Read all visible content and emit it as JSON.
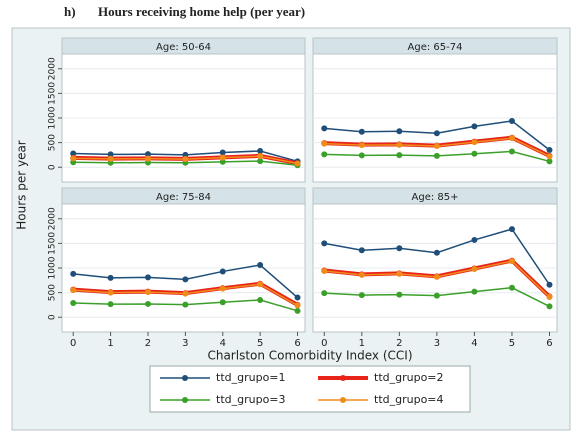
{
  "figure": {
    "label": "h)",
    "title": "Hours receiving home help (per year)"
  },
  "axes": {
    "y_label": "Hours per year",
    "x_label": "Charlston Comorbidity Index (CCI)"
  },
  "chart_data": [
    {
      "type": "line",
      "title": "Age: 50-64",
      "x": [
        0,
        1,
        2,
        3,
        4,
        5,
        6
      ],
      "xlim": [
        -0.3,
        6.2
      ],
      "ylim": [
        -300,
        2300
      ],
      "yticks": [
        0,
        500,
        1000,
        1500,
        2000
      ],
      "grid": true,
      "series": [
        {
          "name": "ttd_grupo=1",
          "color": "#1f4e79",
          "line_width": 1.5,
          "values": [
            280,
            260,
            265,
            250,
            300,
            330,
            120
          ]
        },
        {
          "name": "ttd_grupo=2",
          "color": "#e8231a",
          "line_width": 4,
          "values": [
            190,
            175,
            180,
            170,
            200,
            230,
            80
          ]
        },
        {
          "name": "ttd_grupo=3",
          "color": "#3aa02a",
          "line_width": 1.5,
          "values": [
            100,
            90,
            95,
            90,
            110,
            125,
            40
          ]
        },
        {
          "name": "ttd_grupo=4",
          "color": "#f08c1a",
          "line_width": 1.5,
          "values": [
            180,
            170,
            175,
            165,
            195,
            225,
            75
          ]
        }
      ]
    },
    {
      "type": "line",
      "title": "Age: 65-74",
      "x": [
        0,
        1,
        2,
        3,
        4,
        5,
        6
      ],
      "xlim": [
        -0.3,
        6.2
      ],
      "ylim": [
        -300,
        2300
      ],
      "yticks": [
        0,
        500,
        1000,
        1500,
        2000
      ],
      "grid": true,
      "series": [
        {
          "name": "ttd_grupo=1",
          "color": "#1f4e79",
          "line_width": 1.5,
          "values": [
            790,
            720,
            730,
            690,
            830,
            940,
            350
          ]
        },
        {
          "name": "ttd_grupo=2",
          "color": "#e8231a",
          "line_width": 4,
          "values": [
            490,
            460,
            465,
            440,
            520,
            600,
            230
          ]
        },
        {
          "name": "ttd_grupo=3",
          "color": "#3aa02a",
          "line_width": 1.5,
          "values": [
            260,
            240,
            245,
            230,
            275,
            320,
            120
          ]
        },
        {
          "name": "ttd_grupo=4",
          "color": "#f08c1a",
          "line_width": 1.5,
          "values": [
            480,
            450,
            455,
            430,
            510,
            590,
            220
          ]
        }
      ]
    },
    {
      "type": "line",
      "title": "Age: 75-84",
      "x": [
        0,
        1,
        2,
        3,
        4,
        5,
        6
      ],
      "xlim": [
        -0.3,
        6.2
      ],
      "xticks": [
        0,
        1,
        2,
        3,
        4,
        5,
        6
      ],
      "ylim": [
        -300,
        2300
      ],
      "yticks": [
        0,
        500,
        1000,
        1500,
        2000
      ],
      "grid": true,
      "series": [
        {
          "name": "ttd_grupo=1",
          "color": "#1f4e79",
          "line_width": 1.5,
          "values": [
            880,
            800,
            810,
            770,
            930,
            1060,
            400
          ]
        },
        {
          "name": "ttd_grupo=2",
          "color": "#e8231a",
          "line_width": 4,
          "values": [
            560,
            510,
            520,
            490,
            590,
            680,
            250
          ]
        },
        {
          "name": "ttd_grupo=3",
          "color": "#3aa02a",
          "line_width": 1.5,
          "values": [
            290,
            265,
            270,
            255,
            305,
            350,
            130
          ]
        },
        {
          "name": "ttd_grupo=4",
          "color": "#f08c1a",
          "line_width": 1.5,
          "values": [
            550,
            500,
            510,
            480,
            580,
            670,
            240
          ]
        }
      ]
    },
    {
      "type": "line",
      "title": "Age: 85+",
      "x": [
        0,
        1,
        2,
        3,
        4,
        5,
        6
      ],
      "xlim": [
        -0.3,
        6.2
      ],
      "xticks": [
        0,
        1,
        2,
        3,
        4,
        5,
        6
      ],
      "ylim": [
        -300,
        2300
      ],
      "yticks": [
        0,
        500,
        1000,
        1500,
        2000
      ],
      "grid": true,
      "series": [
        {
          "name": "ttd_grupo=1",
          "color": "#1f4e79",
          "line_width": 1.5,
          "values": [
            1500,
            1360,
            1400,
            1310,
            1570,
            1790,
            660
          ]
        },
        {
          "name": "ttd_grupo=2",
          "color": "#e8231a",
          "line_width": 4,
          "values": [
            950,
            870,
            890,
            830,
            990,
            1150,
            420
          ]
        },
        {
          "name": "ttd_grupo=3",
          "color": "#3aa02a",
          "line_width": 1.5,
          "values": [
            490,
            450,
            460,
            440,
            520,
            600,
            220
          ]
        },
        {
          "name": "ttd_grupo=4",
          "color": "#f08c1a",
          "line_width": 1.5,
          "values": [
            940,
            860,
            880,
            820,
            980,
            1140,
            410
          ]
        }
      ]
    }
  ]
}
